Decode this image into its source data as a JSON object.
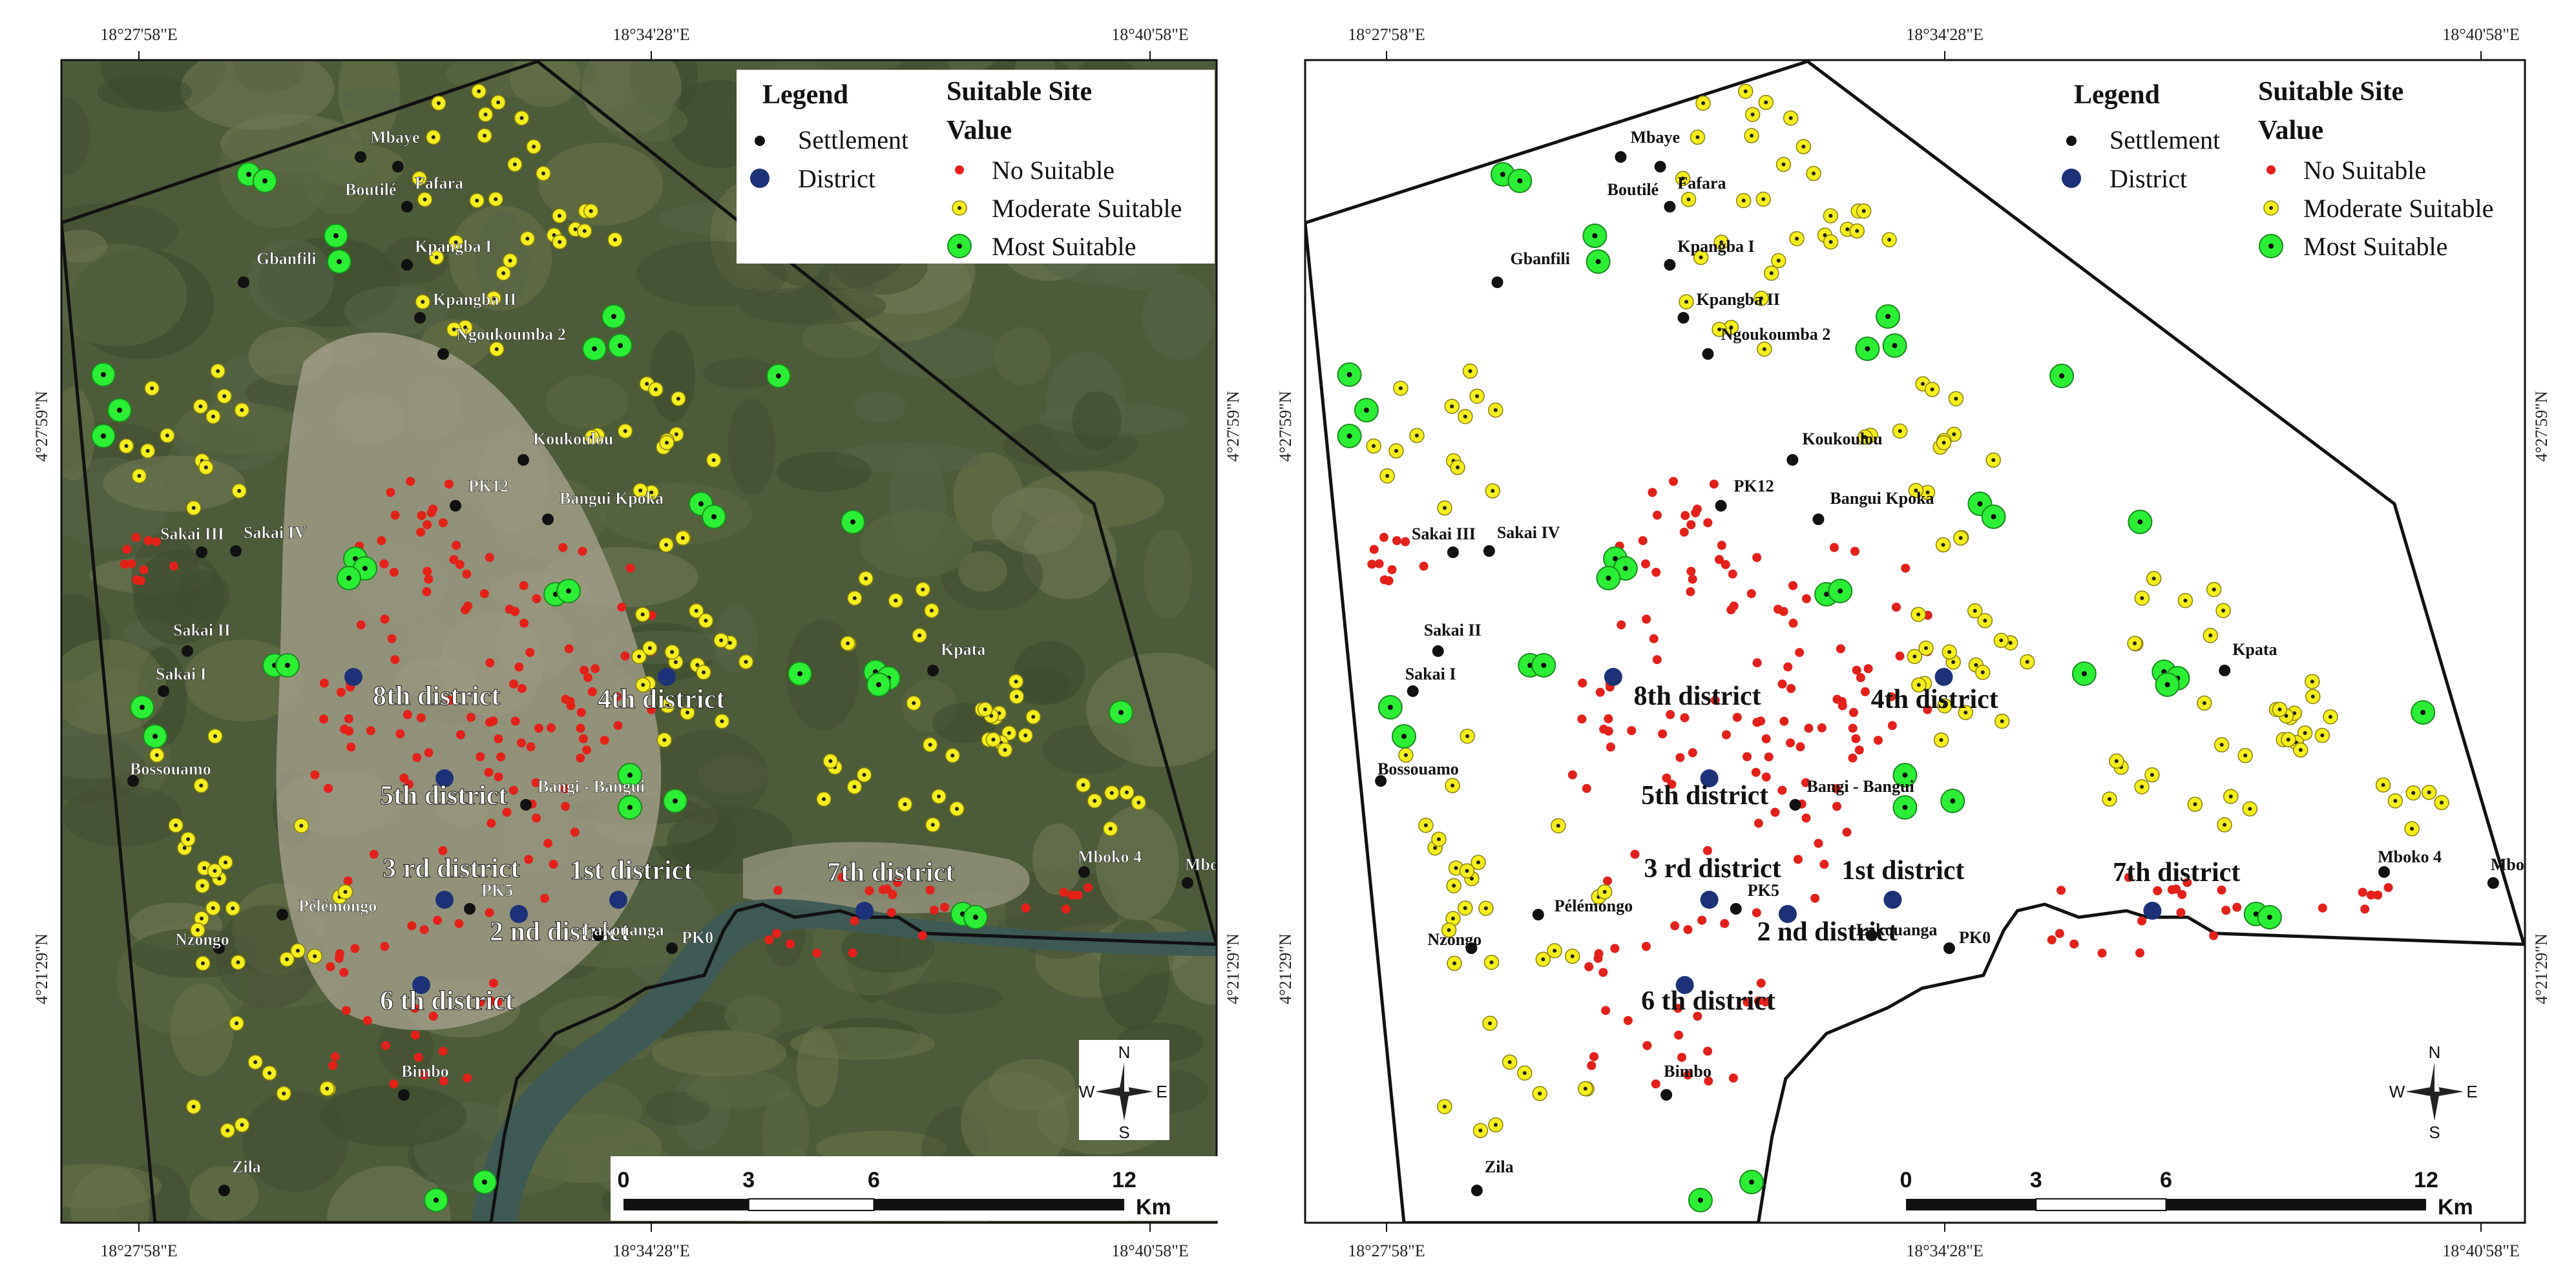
{
  "panels": [
    {
      "id": "left",
      "basemap": "satellite"
    },
    {
      "id": "right",
      "basemap": "blank"
    }
  ],
  "coords": {
    "top": [
      "18°27'58\"E",
      "18°34'28\"E",
      "18°40'58\"E"
    ],
    "bottom": [
      "18°27'58\"E",
      "18°34'28\"E",
      "18°40'58\"E"
    ],
    "side": [
      "4°27'59\"N",
      "4°21'29\"N"
    ]
  },
  "legend": {
    "title": "Legend",
    "settlement": "Settlement",
    "district": "District",
    "suit_title_1": "Suitable Site",
    "suit_title_2": "Value",
    "no": "No Suitable",
    "moderate": "Moderate Suitable",
    "most": "Most Suitable"
  },
  "colors": {
    "no": "#e32119",
    "moderate": "#f6ee1c",
    "most": "#2bef34",
    "settlement": "#111111",
    "district": "#1c3278"
  },
  "scale": {
    "labels": [
      "0",
      "3",
      "6",
      "12"
    ],
    "unit": "Km"
  },
  "compass": {
    "n": "N",
    "s": "S",
    "e": "E",
    "w": "W"
  },
  "districts": [
    {
      "label": "8th district"
    },
    {
      "label": "4th district"
    },
    {
      "label": "5th district"
    },
    {
      "label": "3 rd district"
    },
    {
      "label": "1st district"
    },
    {
      "label": "2 nd district"
    },
    {
      "label": "6 th district"
    },
    {
      "label": "7th district"
    }
  ],
  "settlements": [
    {
      "label": "Mbaye"
    },
    {
      "label": "Boutilé"
    },
    {
      "label": "Fafara"
    },
    {
      "label": "Kpangba I"
    },
    {
      "label": "Gbanfili"
    },
    {
      "label": "Kpangba II"
    },
    {
      "label": "Ngoukoumba 2"
    },
    {
      "label": "Koukoulou"
    },
    {
      "label": "PK12"
    },
    {
      "label": "Bangui Kpoka"
    },
    {
      "label": "Sakai III"
    },
    {
      "label": "Sakai IV"
    },
    {
      "label": "Sakai II"
    },
    {
      "label": "Sakai I"
    },
    {
      "label": "Kpata"
    },
    {
      "label": "Bossouamo"
    },
    {
      "label": "Bangi - Bangui"
    },
    {
      "label": "Mboko 4"
    },
    {
      "label": "Mboko"
    },
    {
      "label": "PK5"
    },
    {
      "label": "Pélémongo"
    },
    {
      "label": "Nzongo"
    },
    {
      "label": "Lakouanga"
    },
    {
      "label": "PK0"
    },
    {
      "label": "Bimbo"
    },
    {
      "label": "Zila"
    }
  ]
}
